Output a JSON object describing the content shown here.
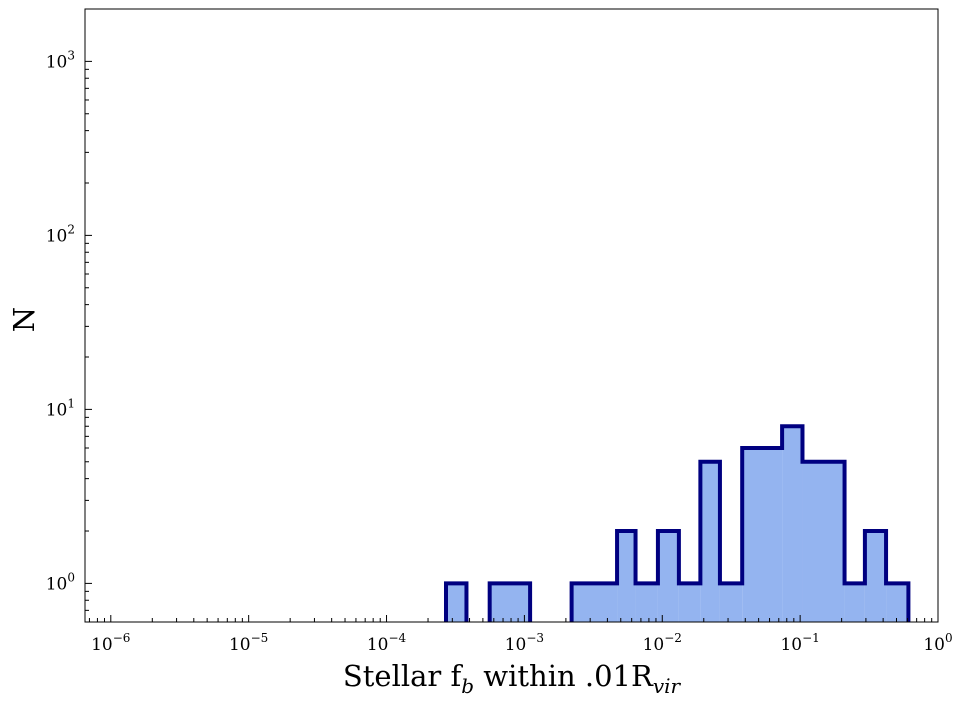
{
  "chart_data": {
    "type": "histogram",
    "xscale": "log",
    "yscale": "log",
    "xlim": [
      6.5e-07,
      1.0
    ],
    "ylim": [
      0.6,
      2000
    ],
    "xlabel": {
      "pre": "Stellar f",
      "sub1": "b",
      "mid": " within .01R",
      "sub2": "vir"
    },
    "ylabel": "N",
    "grid": false,
    "x_ticks": [
      {
        "value": 1e-06,
        "base": "10",
        "exp": "−6"
      },
      {
        "value": 1e-05,
        "base": "10",
        "exp": "−5"
      },
      {
        "value": 0.0001,
        "base": "10",
        "exp": "−4"
      },
      {
        "value": 0.001,
        "base": "10",
        "exp": "−3"
      },
      {
        "value": 0.01,
        "base": "10",
        "exp": "−2"
      },
      {
        "value": 0.1,
        "base": "10",
        "exp": "−1"
      },
      {
        "value": 1,
        "base": "10",
        "exp": "0"
      }
    ],
    "y_ticks": [
      {
        "value": 1,
        "base": "10",
        "exp": "0"
      },
      {
        "value": 10,
        "base": "10",
        "exp": "1"
      },
      {
        "value": 100,
        "base": "10",
        "exp": "2"
      },
      {
        "value": 1000,
        "base": "10",
        "exp": "3"
      }
    ],
    "bins": [
      {
        "x0": 0.00027,
        "x1": 0.00038,
        "count": 1
      },
      {
        "x0": 0.00056,
        "x1": 0.0011,
        "count": 1
      },
      {
        "x0": 0.0022,
        "x1": 0.0047,
        "count": 1
      },
      {
        "x0": 0.0047,
        "x1": 0.0064,
        "count": 2
      },
      {
        "x0": 0.0064,
        "x1": 0.0093,
        "count": 1
      },
      {
        "x0": 0.0093,
        "x1": 0.0132,
        "count": 2
      },
      {
        "x0": 0.0132,
        "x1": 0.0189,
        "count": 1
      },
      {
        "x0": 0.0189,
        "x1": 0.0262,
        "count": 5
      },
      {
        "x0": 0.0262,
        "x1": 0.038,
        "count": 1
      },
      {
        "x0": 0.038,
        "x1": 0.074,
        "count": 6
      },
      {
        "x0": 0.074,
        "x1": 0.104,
        "count": 8
      },
      {
        "x0": 0.104,
        "x1": 0.21,
        "count": 5
      },
      {
        "x0": 0.21,
        "x1": 0.295,
        "count": 1
      },
      {
        "x0": 0.295,
        "x1": 0.42,
        "count": 2
      },
      {
        "x0": 0.42,
        "x1": 0.61,
        "count": 1
      }
    ],
    "fill_color": "#94b4f0",
    "edge_color": "#000080"
  }
}
